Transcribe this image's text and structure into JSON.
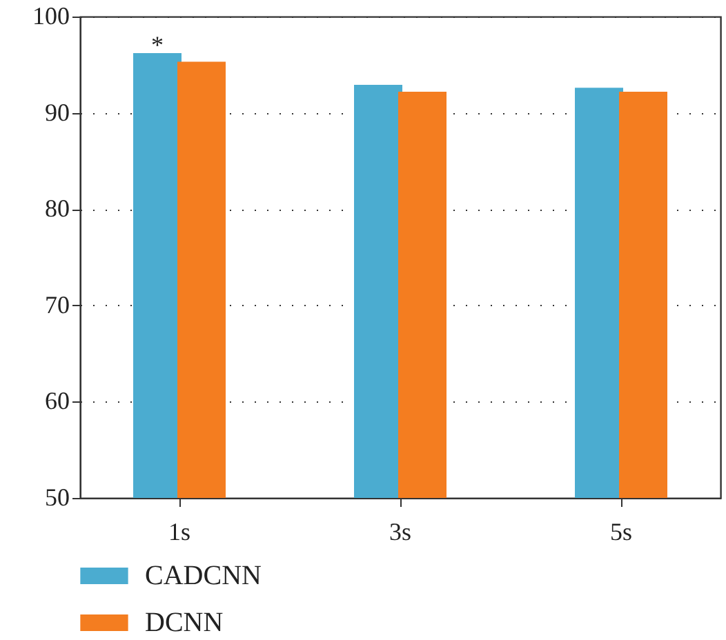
{
  "chart_data": {
    "type": "bar",
    "categories": [
      "1s",
      "3s",
      "5s"
    ],
    "series": [
      {
        "name": "CADCNN",
        "color": "#4bacd0",
        "values": [
          96.2,
          92.9,
          92.6
        ]
      },
      {
        "name": "DCNN",
        "color": "#f47d20",
        "values": [
          95.3,
          92.2,
          92.2
        ]
      }
    ],
    "ylim": [
      50,
      100
    ],
    "yticks": [
      50,
      60,
      70,
      80,
      90,
      100
    ],
    "grid": "y",
    "legend": "bottom left",
    "annotations": [
      {
        "text": "*",
        "x": "1s",
        "y": 96.2
      }
    ]
  }
}
